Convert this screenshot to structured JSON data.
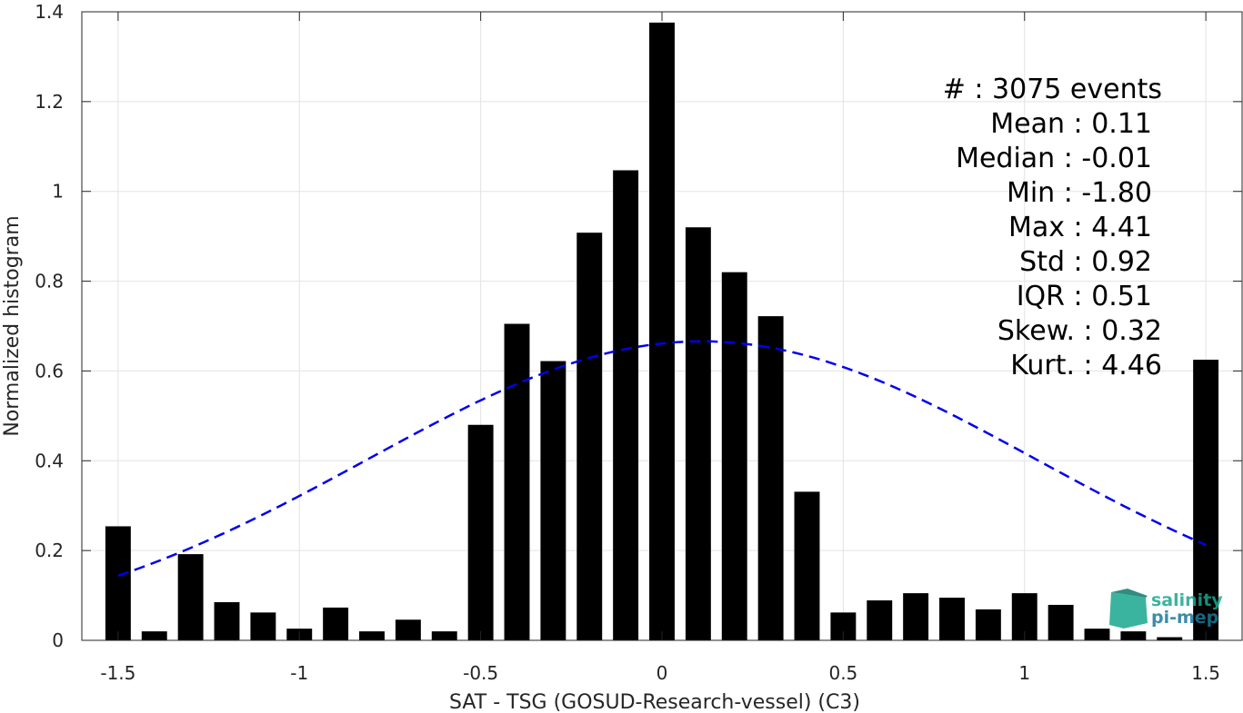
{
  "chart_data": {
    "type": "bar",
    "xlabel": "SAT - TSG (GOSUD-Research-vessel) (C3)",
    "ylabel": "Normalized histogram",
    "xlim": [
      -1.6,
      1.6
    ],
    "ylim": [
      0,
      1.4
    ],
    "grid": true,
    "bar_color": "#000000",
    "x_ticks": [
      -1.5,
      -1,
      -0.5,
      0,
      0.5,
      1,
      1.5
    ],
    "x_tick_labels": [
      "-1.5",
      "-1",
      "-0.5",
      "0",
      "0.5",
      "1",
      "1.5"
    ],
    "y_ticks": [
      0,
      0.2,
      0.4,
      0.6,
      0.8,
      1,
      1.2,
      1.4
    ],
    "y_tick_labels": [
      "0",
      "0.2",
      "0.4",
      "0.6",
      "0.8",
      "1",
      "1.2",
      "1.4"
    ],
    "bin_centers": [
      -1.5,
      -1.4,
      -1.3,
      -1.2,
      -1.1,
      -1.0,
      -0.9,
      -0.8,
      -0.7,
      -0.6,
      -0.5,
      -0.4,
      -0.3,
      -0.2,
      -0.1,
      0.0,
      0.1,
      0.2,
      0.3,
      0.4,
      0.5,
      0.6,
      0.7,
      0.8,
      0.9,
      1.0,
      1.1,
      1.2,
      1.3,
      1.4,
      1.5
    ],
    "bar_width": 0.07,
    "values": [
      0.254,
      0.02,
      0.192,
      0.085,
      0.062,
      0.026,
      0.073,
      0.02,
      0.046,
      0.02,
      0.48,
      0.705,
      0.622,
      0.908,
      1.047,
      1.376,
      0.92,
      0.82,
      0.722,
      0.331,
      0.062,
      0.089,
      0.105,
      0.095,
      0.069,
      0.105,
      0.079,
      0.026,
      0.02,
      0.007,
      0.625
    ],
    "fit_curve": {
      "type": "gaussian",
      "mean": 0.11,
      "std": 0.92,
      "peak": 0.666,
      "x_range": [
        -1.5,
        1.5
      ],
      "color": "#0000ee",
      "style": "dashed"
    },
    "annotation_lines": [
      "#  : 3075 events",
      "Mean : 0.11",
      "Median : -0.01",
      "Min : -1.80",
      "Max : 4.41",
      "Std : 0.92",
      "IQR : 0.51",
      "Skew. : 0.32",
      "Kurt. : 4.46"
    ],
    "logo": {
      "line1": "salinity",
      "line2": "pi-mep"
    }
  }
}
